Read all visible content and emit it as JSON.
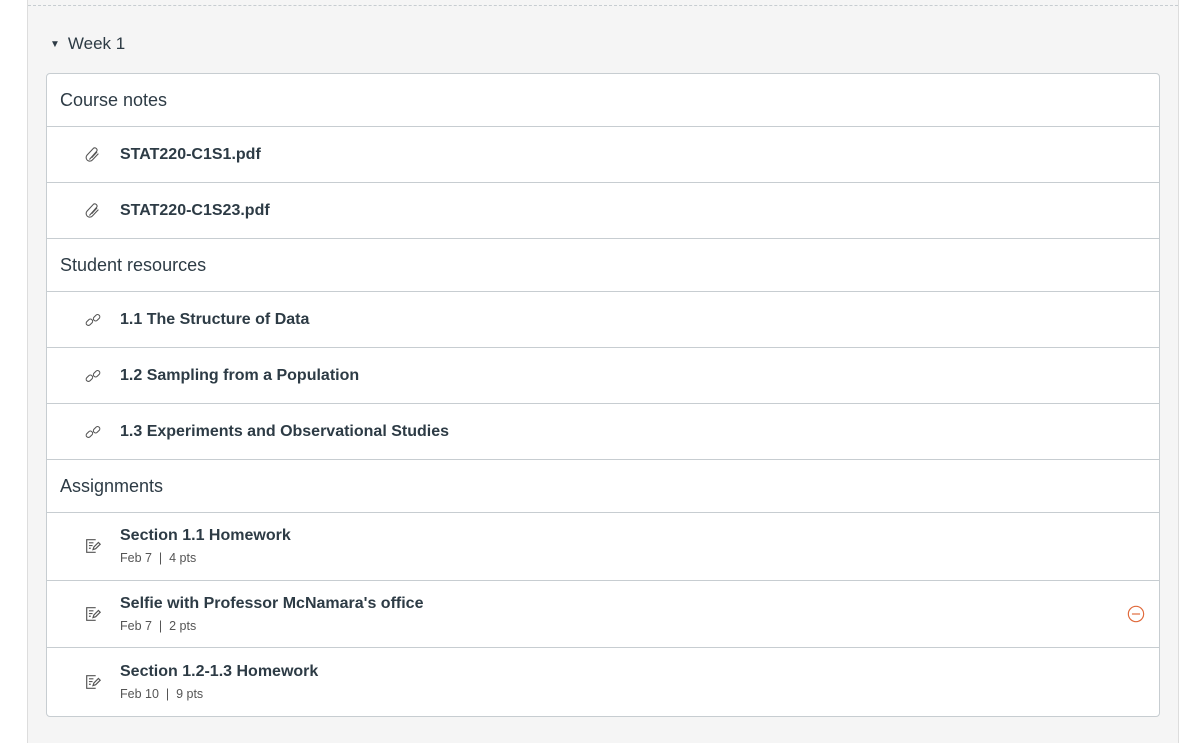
{
  "module": {
    "title": "Week 1",
    "expanded": true
  },
  "groups": [
    {
      "header": "Course notes",
      "items": [
        {
          "icon": "paperclip-icon",
          "title": "STAT220-C1S1.pdf"
        },
        {
          "icon": "paperclip-icon",
          "title": "STAT220-C1S23.pdf"
        }
      ]
    },
    {
      "header": "Student resources",
      "items": [
        {
          "icon": "link-icon",
          "title": "1.1 The Structure of Data"
        },
        {
          "icon": "link-icon",
          "title": "1.2 Sampling from a Population"
        },
        {
          "icon": "link-icon",
          "title": "1.3 Experiments and Observational Studies"
        }
      ]
    },
    {
      "header": "Assignments",
      "items": [
        {
          "icon": "assignment-icon",
          "title": "Section 1.1 Homework",
          "date": "Feb 7",
          "sep": "|",
          "points": "4 pts"
        },
        {
          "icon": "assignment-icon",
          "title": "Selfie with Professor McNamara's office",
          "date": "Feb 7",
          "sep": "|",
          "points": "2 pts",
          "status": "unpublished-icon"
        },
        {
          "icon": "assignment-icon",
          "title": "Section 1.2-1.3 Homework",
          "date": "Feb 10",
          "sep": "|",
          "points": "9 pts"
        }
      ]
    }
  ],
  "colors": {
    "status": "#e0693a",
    "border": "#c7cdd1",
    "background": "#f5f5f5"
  }
}
